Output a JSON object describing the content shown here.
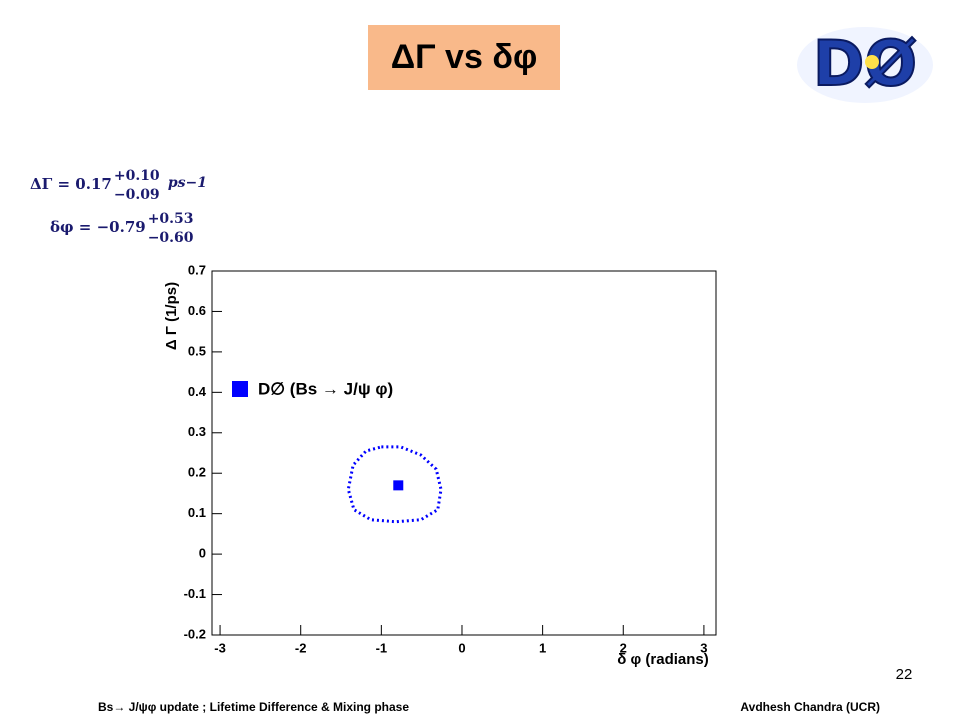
{
  "title": "ΔΓ vs δφ",
  "logo": "DØ",
  "footer": {
    "left": "Bs→ J/ψφ update ;   Lifetime Difference & Mixing phase",
    "right": "Avdhesh Chandra (UCR)",
    "page": "22"
  },
  "chart_data": {
    "type": "scatter",
    "annotations": [
      {
        "lhs": "ΔΓ = 0.17",
        "sup": "+0.10",
        "sub": "−0.09",
        "unit": "ps−1"
      },
      {
        "lhs": "δφ = −0.79",
        "sup": "+0.53",
        "sub": "−0.60"
      }
    ],
    "x_label": "δ φ (radians)",
    "y_label": "Δ Γ (1/ps)",
    "xlim": [
      -3.1,
      3.15
    ],
    "ylim": [
      -0.2,
      0.7
    ],
    "xticks": [
      -3,
      -2,
      -1,
      0,
      1,
      2,
      3
    ],
    "yticks": [
      -0.2,
      -0.1,
      0,
      0.1,
      0.2,
      0.3,
      0.4,
      0.5,
      0.6,
      0.7
    ],
    "series": [
      {
        "name": "D∅ (Bs → J/ψ φ)",
        "color": "#0000ff",
        "marker": "square",
        "x": [
          -0.79
        ],
        "y": [
          0.17
        ]
      },
      {
        "color": "#0000ff",
        "style": "dotted",
        "closed": true,
        "x": [
          -1.0,
          -0.76,
          -0.51,
          -0.32,
          -0.26,
          -0.3,
          -0.51,
          -0.82,
          -1.13,
          -1.34,
          -1.41,
          -1.35,
          -1.19
        ],
        "y": [
          0.265,
          0.265,
          0.245,
          0.21,
          0.16,
          0.11,
          0.085,
          0.08,
          0.085,
          0.11,
          0.16,
          0.22,
          0.255
        ]
      }
    ]
  }
}
